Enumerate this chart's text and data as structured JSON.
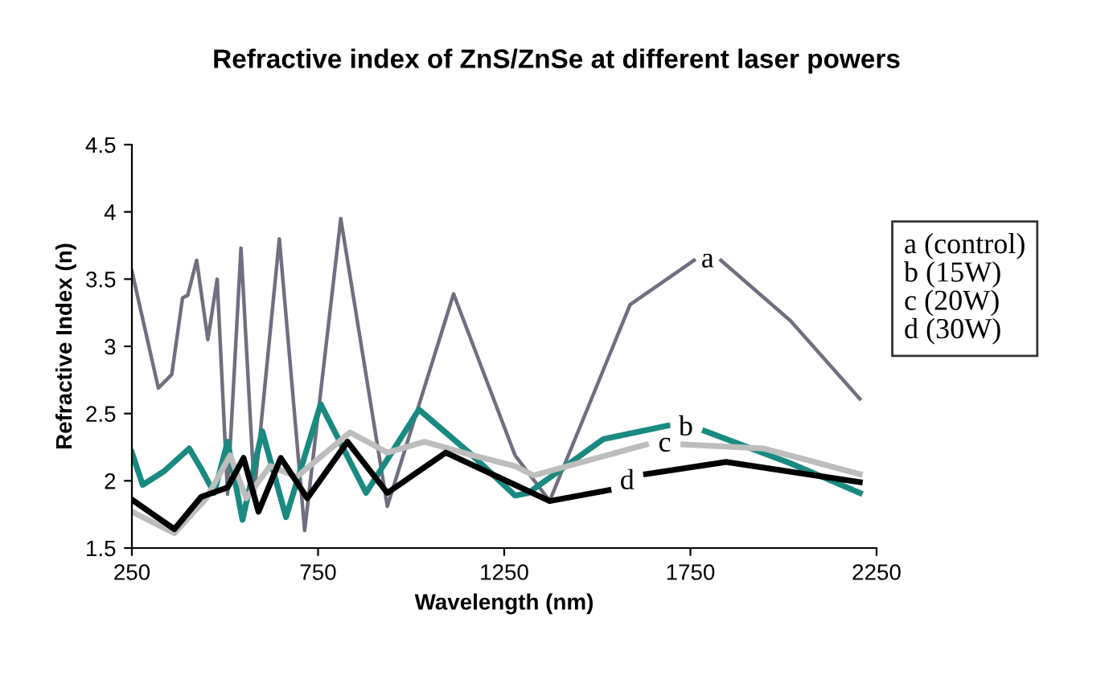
{
  "chart_data": {
    "type": "line",
    "title": "Refractive index of ZnS/ZnSe at different laser powers",
    "xlabel": "Wavelength (nm)",
    "ylabel": "Refractive Index (n)",
    "xlim": [
      250,
      2250
    ],
    "xticks": [
      250,
      750,
      1250,
      1750,
      2250
    ],
    "ylim": [
      1.5,
      4.5
    ],
    "yticks": [
      1.5,
      2,
      2.5,
      3,
      3.5,
      4,
      4.5
    ],
    "grid": false,
    "legend": false,
    "annotations": [
      "a (control)\nb (15W)\nc (20W)\nd (30W)"
    ],
    "series": [
      {
        "name": "a",
        "color": "#6f6f7f",
        "x": [
          250,
          321,
          357,
          386,
          400,
          424,
          454,
          479,
          507,
          543,
          579,
          646,
          714,
          811,
          936,
          1114,
          1279,
          1372,
          1588,
          1760,
          1796,
          1832,
          2019,
          2205
        ],
        "values": [
          3.56,
          2.69,
          2.79,
          3.36,
          3.38,
          3.64,
          3.05,
          3.5,
          1.9,
          3.73,
          1.91,
          3.8,
          1.63,
          3.95,
          1.81,
          3.39,
          2.19,
          1.85,
          3.31,
          3.64,
          null,
          3.64,
          3.19,
          2.61
        ]
      },
      {
        "name": "b",
        "color": "#1a8a80",
        "x": [
          250,
          279,
          336,
          404,
          436,
          471,
          507,
          547,
          600,
          664,
          757,
          879,
          1021,
          1164,
          1279,
          1315,
          1516,
          1688,
          1738,
          1789,
          2019,
          2205
        ],
        "values": [
          2.21,
          1.97,
          2.07,
          2.24,
          2.09,
          1.91,
          2.29,
          1.71,
          2.37,
          1.73,
          2.57,
          1.91,
          2.53,
          2.19,
          1.89,
          1.91,
          2.31,
          2.41,
          null,
          2.37,
          2.13,
          1.91
        ]
      },
      {
        "name": "c",
        "color": "#bdbdbd",
        "x": [
          250,
          364,
          450,
          514,
          557,
          621,
          693,
          836,
          936,
          1036,
          1164,
          1279,
          1329,
          1631,
          1681,
          1731,
          1947,
          2205
        ],
        "values": [
          1.77,
          1.61,
          1.87,
          2.19,
          1.87,
          2.11,
          2.03,
          2.36,
          2.21,
          2.29,
          2.19,
          2.11,
          2.04,
          2.27,
          null,
          2.27,
          2.24,
          2.05
        ]
      },
      {
        "name": "d",
        "color": "#000000",
        "x": [
          250,
          364,
          436,
          507,
          550,
          590,
          650,
          721,
          829,
          936,
          1093,
          1279,
          1372,
          1530,
          1580,
          1631,
          1846,
          2205
        ],
        "values": [
          1.86,
          1.64,
          1.88,
          1.95,
          2.17,
          1.77,
          2.17,
          1.87,
          2.29,
          1.91,
          2.21,
          1.97,
          1.85,
          1.93,
          null,
          2.05,
          2.14,
          1.99
        ]
      }
    ]
  }
}
